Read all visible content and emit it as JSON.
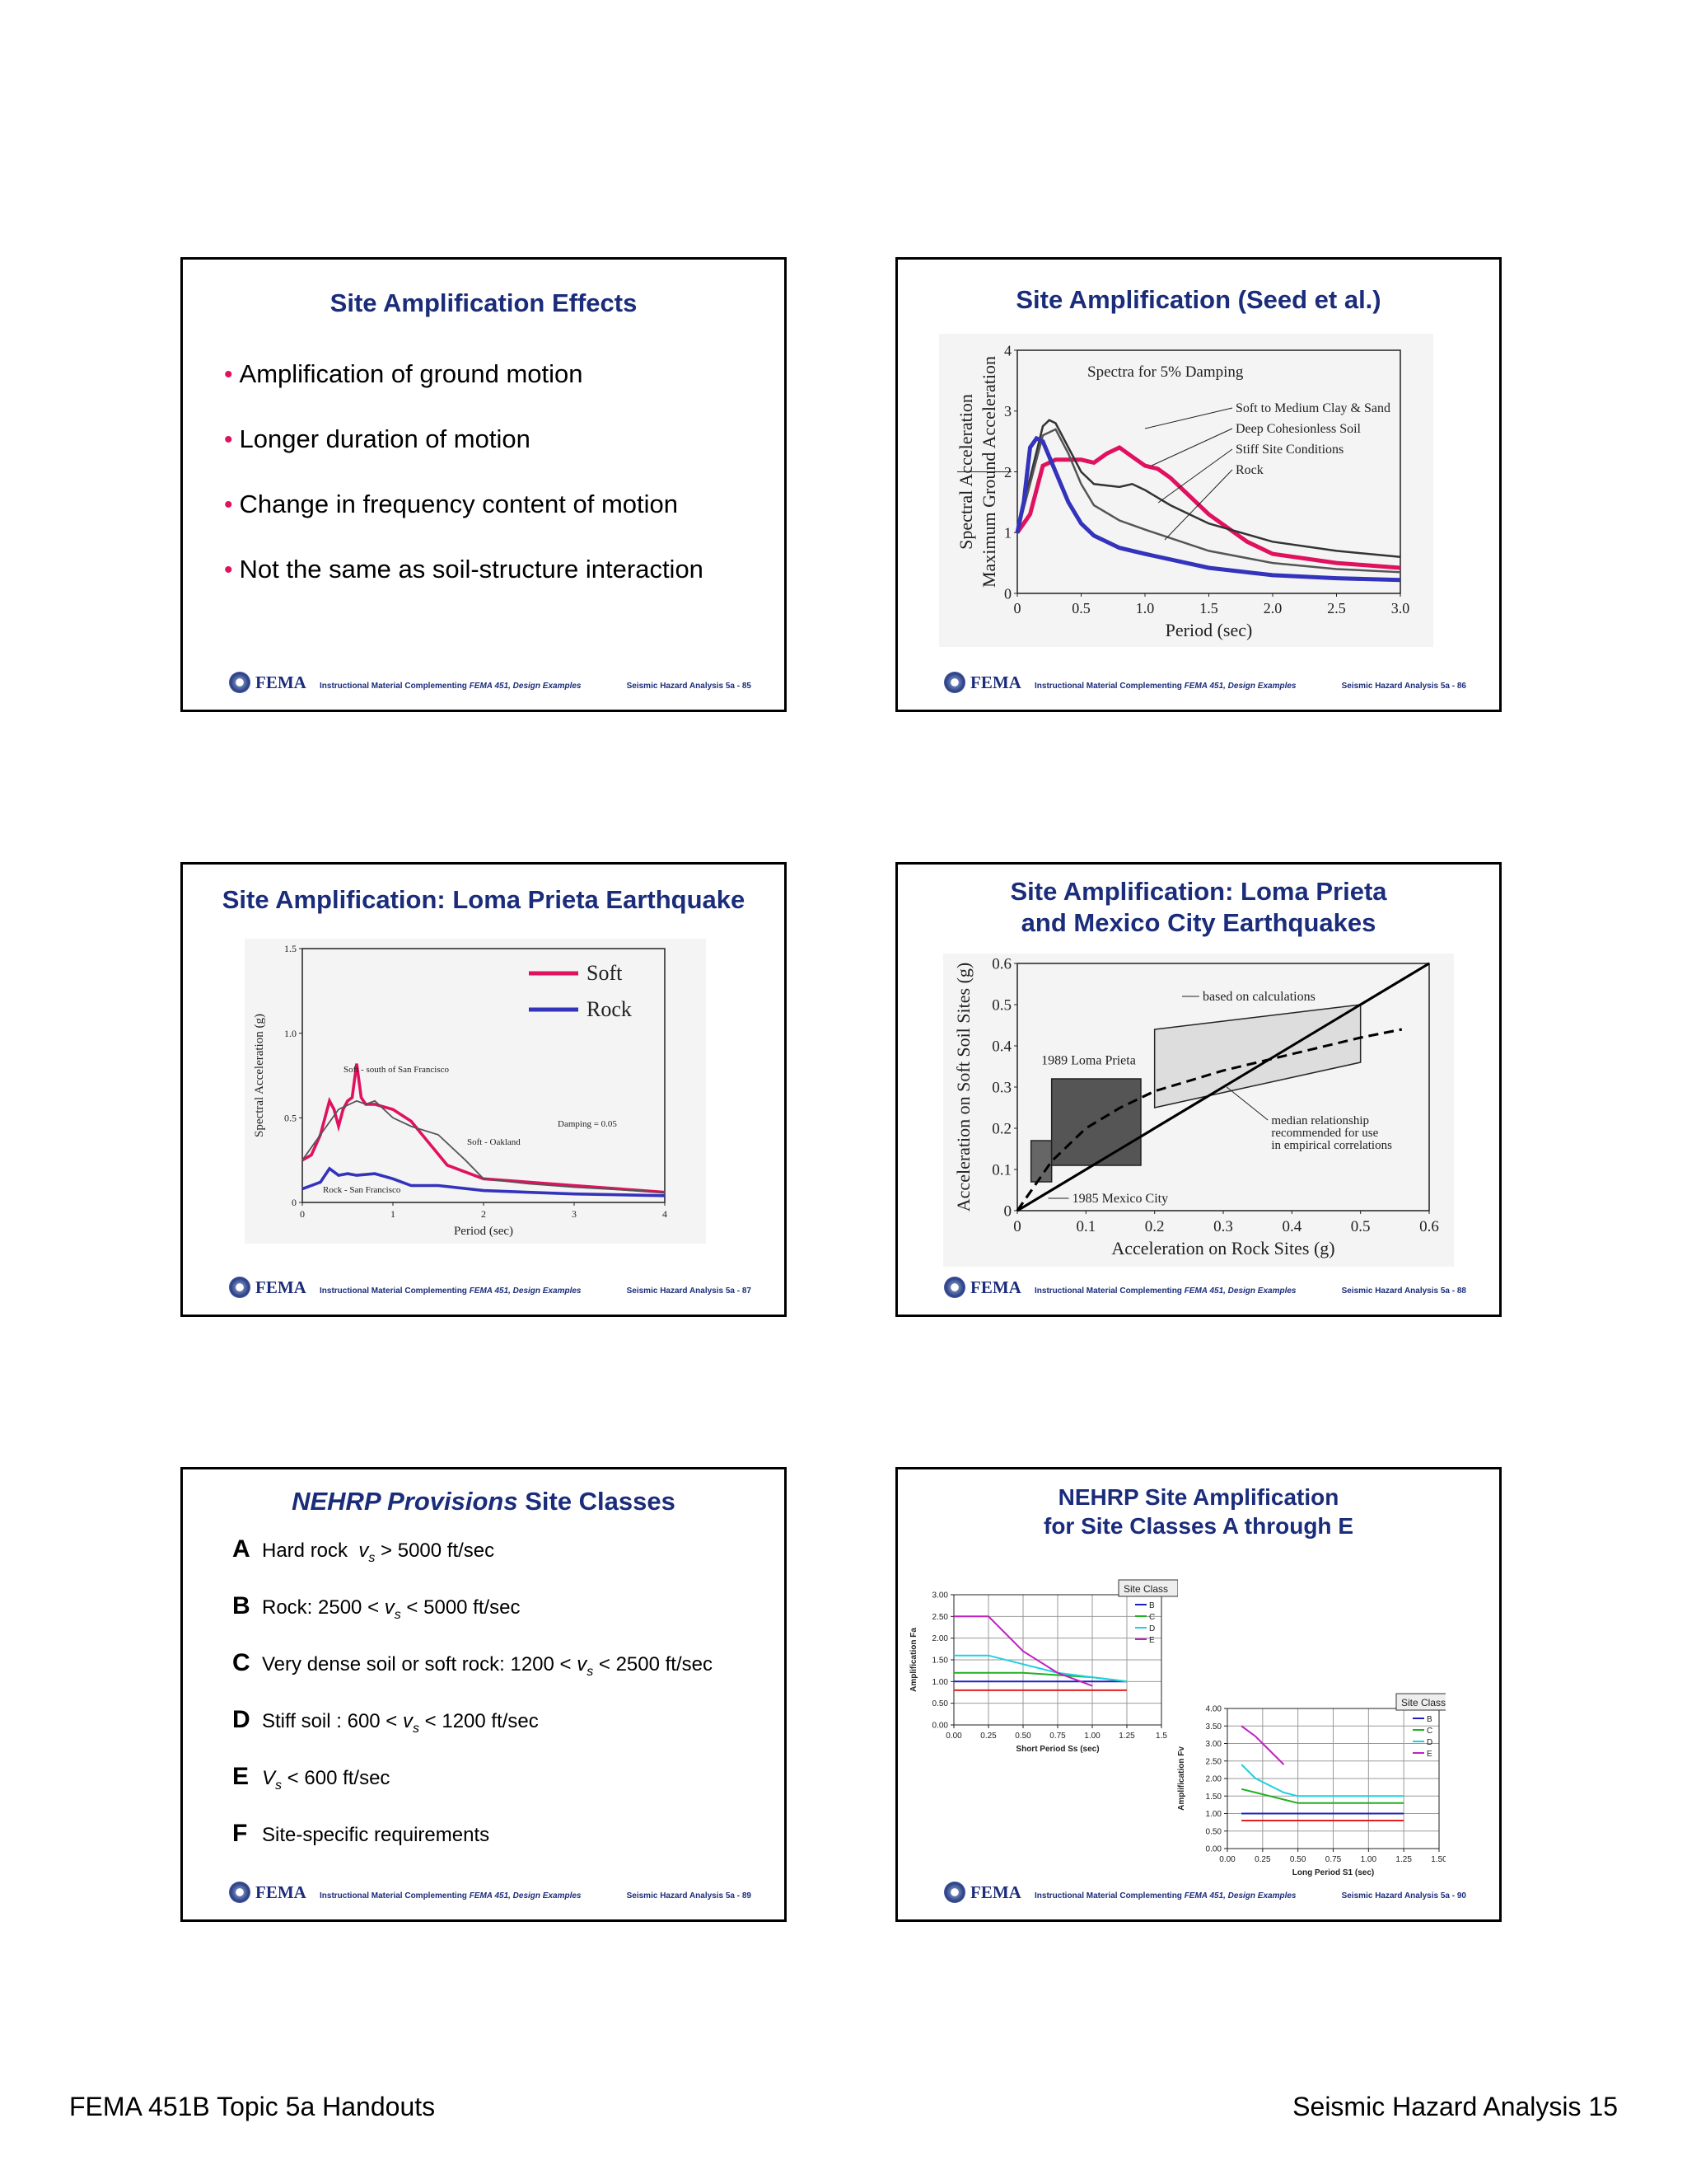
{
  "slides": [
    {
      "title": "Site Amplification Effects",
      "bullets": [
        "Amplification of ground motion",
        "Longer duration of motion",
        "Change in frequency content of motion",
        "Not the same as soil-structure interaction"
      ],
      "footer": {
        "org": "FEMA",
        "center_prefix": "Instructional Material Complementing",
        "center_em": "FEMA 451, Design Examples",
        "right": "Seismic Hazard Analysis 5a - 85"
      }
    },
    {
      "title": "Site Amplification (Seed et al.)",
      "footer": {
        "org": "FEMA",
        "center_prefix": "Instructional Material Complementing",
        "center_em": "FEMA 451, Design Examples",
        "right": "Seismic Hazard Analysis 5a - 86"
      }
    },
    {
      "title": "Site Amplification:  Loma Prieta Earthquake",
      "footer": {
        "org": "FEMA",
        "center_prefix": "Instructional Material Complementing",
        "center_em": "FEMA 451, Design Examples",
        "right": "Seismic Hazard Analysis 5a - 87"
      }
    },
    {
      "title_line1": "Site Amplification:  Loma Prieta",
      "title_line2": "and Mexico City Earthquakes",
      "footer": {
        "org": "FEMA",
        "center_prefix": "Instructional Material Complementing",
        "center_em": "FEMA 451, Design Examples",
        "right": "Seismic Hazard Analysis 5a - 88"
      }
    },
    {
      "title_em": "NEHRP Provisions",
      "title_rest": " Site Classes",
      "classes": [
        {
          "letter": "A",
          "pre": "Hard rock  ",
          "v": "v",
          "sub": "s",
          "post": " > 5000 ft/sec"
        },
        {
          "letter": "B",
          "pre": "Rock: 2500 < ",
          "v": "v",
          "sub": "s",
          "post": " < 5000 ft/sec"
        },
        {
          "letter": "C",
          "pre": "Very dense soil or soft rock: 1200 < ",
          "v": "v",
          "sub": "s",
          "post": " < 2500 ft/sec"
        },
        {
          "letter": "D",
          "pre": "Stiff soil : 600 < ",
          "v": "v",
          "sub": "s",
          "post": " < 1200 ft/sec"
        },
        {
          "letter": "E",
          "pre": "",
          "v": "V",
          "sub": "s",
          "post": " < 600 ft/sec"
        },
        {
          "letter": "F",
          "pre": "Site-specific requirements",
          "v": "",
          "sub": "",
          "post": ""
        }
      ],
      "footer": {
        "org": "FEMA",
        "center_prefix": "Instructional Material Complementing",
        "center_em": "FEMA 451, Design Examples",
        "right": "Seismic Hazard Analysis 5a - 89"
      }
    },
    {
      "title_line1": "NEHRP Site Amplification",
      "title_line2": "for Site Classes A through E",
      "footer": {
        "org": "FEMA",
        "center_prefix": "Instructional Material Complementing",
        "center_em": "FEMA 451, Design Examples",
        "right": "Seismic Hazard Analysis 5a - 90"
      }
    }
  ],
  "chart_data": [
    {
      "type": "line",
      "title": "Spectra for 5% Damping",
      "xlabel": "Period (sec)",
      "ylabel": "Spectral Acceleration / Maximum Ground Acceleration",
      "xlim": [
        0,
        3.0
      ],
      "ylim": [
        0,
        4
      ],
      "xticks": [
        "0",
        "0.5",
        "1.0",
        "1.5",
        "2.0",
        "2.5",
        "3.0"
      ],
      "yticks": [
        "0",
        "1",
        "2",
        "3",
        "4"
      ],
      "series": [
        {
          "name": "Soft to Medium Clay & Sand",
          "color": "#e0115f",
          "x": [
            0,
            0.1,
            0.2,
            0.3,
            0.4,
            0.5,
            0.6,
            0.7,
            0.8,
            0.9,
            1.0,
            1.1,
            1.2,
            1.5,
            1.8,
            2.0,
            2.5,
            3.0
          ],
          "y": [
            1.0,
            1.3,
            2.1,
            2.2,
            2.2,
            2.2,
            2.15,
            2.3,
            2.4,
            2.25,
            2.1,
            2.05,
            1.9,
            1.3,
            0.85,
            0.65,
            0.5,
            0.42
          ]
        },
        {
          "name": "Deep Cohesionless Soil",
          "color": "#333333",
          "x": [
            0,
            0.1,
            0.2,
            0.25,
            0.3,
            0.4,
            0.5,
            0.6,
            0.8,
            0.9,
            1.0,
            1.2,
            1.5,
            2.0,
            2.5,
            3.0
          ],
          "y": [
            1.0,
            1.9,
            2.75,
            2.85,
            2.8,
            2.4,
            2.0,
            1.8,
            1.75,
            1.8,
            1.7,
            1.45,
            1.15,
            0.85,
            0.7,
            0.6
          ]
        },
        {
          "name": "Stiff Site Conditions",
          "color": "#555555",
          "x": [
            0,
            0.1,
            0.2,
            0.3,
            0.4,
            0.5,
            0.6,
            0.8,
            1.0,
            1.5,
            2.0,
            2.5,
            3.0
          ],
          "y": [
            1.0,
            1.8,
            2.6,
            2.7,
            2.3,
            1.8,
            1.45,
            1.2,
            1.05,
            0.7,
            0.5,
            0.4,
            0.35
          ]
        },
        {
          "name": "Rock",
          "color": "#3333bb",
          "x": [
            0,
            0.05,
            0.1,
            0.15,
            0.2,
            0.3,
            0.4,
            0.5,
            0.6,
            0.8,
            1.0,
            1.5,
            2.0,
            2.5,
            3.0
          ],
          "y": [
            1.0,
            1.5,
            2.4,
            2.55,
            2.5,
            2.0,
            1.5,
            1.15,
            0.95,
            0.75,
            0.65,
            0.42,
            0.3,
            0.25,
            0.22
          ]
        }
      ]
    },
    {
      "type": "line",
      "title": "",
      "xlabel": "Period (sec)",
      "ylabel": "Spectral Acceleration (g)",
      "xlim": [
        0,
        4
      ],
      "ylim": [
        0,
        1.5
      ],
      "xticks": [
        "0",
        "1",
        "2",
        "3",
        "4"
      ],
      "yticks": [
        "0",
        "0.5",
        "1.0",
        "1.5"
      ],
      "annotations": [
        "Soft - south of San Francisco",
        "Soft - Oakland",
        "Rock - San Francisco",
        "Damping = 0.05"
      ],
      "series": [
        {
          "name": "Soft",
          "color": "#e0115f",
          "x": [
            0,
            0.1,
            0.2,
            0.3,
            0.35,
            0.4,
            0.45,
            0.5,
            0.55,
            0.6,
            0.65,
            0.7,
            0.8,
            1.0,
            1.2,
            1.4,
            1.6,
            2.0,
            2.5,
            3.0,
            3.5,
            4.0
          ],
          "y": [
            0.25,
            0.28,
            0.4,
            0.6,
            0.55,
            0.45,
            0.55,
            0.6,
            0.62,
            0.82,
            0.62,
            0.58,
            0.58,
            0.55,
            0.48,
            0.35,
            0.22,
            0.14,
            0.12,
            0.1,
            0.08,
            0.06
          ]
        },
        {
          "name": "Soft - Oakland",
          "color": "#555555",
          "x": [
            0,
            0.2,
            0.4,
            0.6,
            0.7,
            0.8,
            1.0,
            1.2,
            1.5,
            1.8,
            2.0,
            2.5,
            3.0,
            4.0
          ],
          "y": [
            0.25,
            0.4,
            0.55,
            0.6,
            0.58,
            0.6,
            0.5,
            0.45,
            0.4,
            0.25,
            0.14,
            0.11,
            0.09,
            0.06
          ]
        },
        {
          "name": "Rock",
          "color": "#3333bb",
          "x": [
            0,
            0.1,
            0.2,
            0.3,
            0.4,
            0.5,
            0.6,
            0.8,
            1.0,
            1.2,
            1.5,
            2.0,
            2.5,
            3.0,
            4.0
          ],
          "y": [
            0.08,
            0.1,
            0.12,
            0.2,
            0.16,
            0.17,
            0.16,
            0.17,
            0.14,
            0.1,
            0.1,
            0.07,
            0.06,
            0.05,
            0.04
          ]
        }
      ]
    },
    {
      "type": "line",
      "title": "",
      "xlabel": "Acceleration on Rock Sites (g)",
      "ylabel": "Acceleration on Soft Soil Sites (g)",
      "xlim": [
        0,
        0.6
      ],
      "ylim": [
        0,
        0.6
      ],
      "xticks": [
        "0",
        "0.1",
        "0.2",
        "0.3",
        "0.4",
        "0.5",
        "0.6"
      ],
      "yticks": [
        "0",
        "0.1",
        "0.2",
        "0.3",
        "0.4",
        "0.5",
        "0.6"
      ],
      "annotations": [
        "based on calculations",
        "1989 Loma Prieta",
        "median relationship",
        "recommended for use",
        "in empirical correlations",
        "1985 Mexico City"
      ],
      "series": [
        {
          "name": "median relationship",
          "color": "#000000",
          "dashed": true,
          "x": [
            0,
            0.05,
            0.1,
            0.15,
            0.2,
            0.3,
            0.4,
            0.5,
            0.56
          ],
          "y": [
            0,
            0.12,
            0.2,
            0.25,
            0.29,
            0.34,
            0.38,
            0.42,
            0.44
          ]
        },
        {
          "name": "1:1",
          "color": "#000000",
          "x": [
            0,
            0.6
          ],
          "y": [
            0,
            0.6
          ]
        }
      ]
    },
    {
      "type": "line",
      "title": "",
      "xlabel": "Short Period Ss (sec)",
      "ylabel": "Amplification Fa",
      "legend_title": "Site Class",
      "xlim": [
        0,
        1.5
      ],
      "ylim": [
        0,
        3.0
      ],
      "xticks": [
        "0.00",
        "0.25",
        "0.50",
        "0.75",
        "1.00",
        "1.25",
        "1.5"
      ],
      "yticks": [
        "0.00",
        "0.50",
        "1.00",
        "1.50",
        "2.00",
        "2.50",
        "3.00"
      ],
      "series": [
        {
          "name": "A",
          "color": "#e02020",
          "x": [
            0,
            1.25
          ],
          "y": [
            0.8,
            0.8
          ]
        },
        {
          "name": "B",
          "color": "#2020c0",
          "x": [
            0,
            1.25
          ],
          "y": [
            1.0,
            1.0
          ]
        },
        {
          "name": "C",
          "color": "#20b020",
          "x": [
            0,
            0.5,
            1.0,
            1.25
          ],
          "y": [
            1.2,
            1.2,
            1.1,
            1.0
          ]
        },
        {
          "name": "D",
          "color": "#20d0e0",
          "x": [
            0,
            0.25,
            0.5,
            0.75,
            1.0,
            1.25
          ],
          "y": [
            1.6,
            1.6,
            1.4,
            1.2,
            1.1,
            1.0
          ]
        },
        {
          "name": "E",
          "color": "#c020c0",
          "x": [
            0,
            0.25,
            0.5,
            0.75,
            1.0
          ],
          "y": [
            2.5,
            2.5,
            1.7,
            1.2,
            0.9
          ]
        }
      ]
    },
    {
      "type": "line",
      "title": "",
      "xlabel": "Long Period S1 (sec)",
      "ylabel": "Amplification Fv",
      "legend_title": "Site Class",
      "xlim": [
        0,
        1.5
      ],
      "ylim": [
        0,
        4.0
      ],
      "xticks": [
        "0.00",
        "0.25",
        "0.50",
        "0.75",
        "1.00",
        "1.25",
        "1.50"
      ],
      "yticks": [
        "0.00",
        "0.50",
        "1.00",
        "1.50",
        "2.00",
        "2.50",
        "3.00",
        "3.50",
        "4.00"
      ],
      "series": [
        {
          "name": "A",
          "color": "#e02020",
          "x": [
            0.1,
            1.25
          ],
          "y": [
            0.8,
            0.8
          ]
        },
        {
          "name": "B",
          "color": "#2020c0",
          "x": [
            0.1,
            1.25
          ],
          "y": [
            1.0,
            1.0
          ]
        },
        {
          "name": "C",
          "color": "#20b020",
          "x": [
            0.1,
            0.2,
            0.3,
            0.4,
            0.5,
            1.25
          ],
          "y": [
            1.7,
            1.6,
            1.5,
            1.4,
            1.3,
            1.3
          ]
        },
        {
          "name": "D",
          "color": "#20d0e0",
          "x": [
            0.1,
            0.2,
            0.3,
            0.4,
            0.5,
            1.25
          ],
          "y": [
            2.4,
            2.0,
            1.8,
            1.6,
            1.5,
            1.5
          ]
        },
        {
          "name": "E",
          "color": "#c020c0",
          "x": [
            0.1,
            0.2,
            0.3,
            0.4
          ],
          "y": [
            3.5,
            3.2,
            2.8,
            2.4
          ]
        }
      ]
    }
  ],
  "page_footer": {
    "left": "FEMA 451B Topic 5a Handouts",
    "right": "Seismic Hazard Analysis 15"
  }
}
